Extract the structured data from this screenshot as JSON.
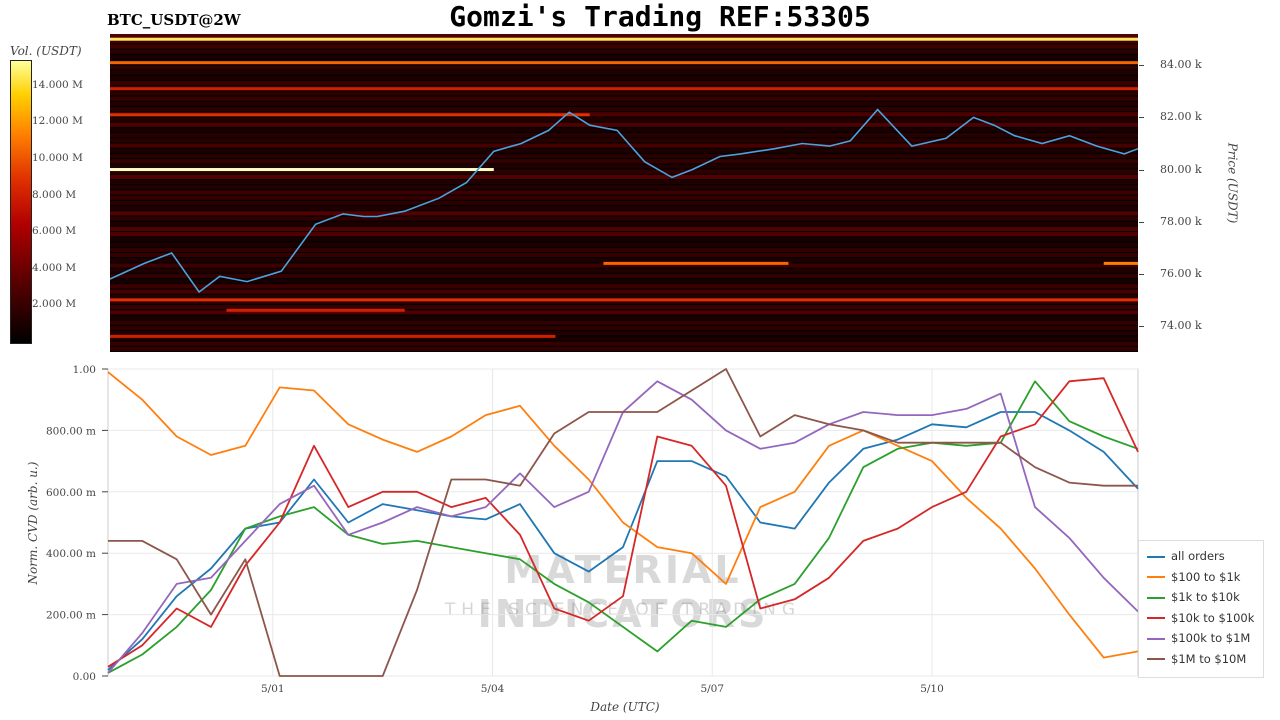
{
  "header": {
    "title": "Gomzi's Trading REF:53305",
    "pair": "BTC_USDT@2W"
  },
  "colorbar": {
    "label": "Vol. (USDT)",
    "ticks": [
      "14.000 M",
      "12.000 M",
      "10.000 M",
      "8.000 M",
      "6.000 M",
      "4.000 M",
      "2.000 M"
    ],
    "tick_values": [
      14,
      12,
      10,
      8,
      6,
      4,
      2
    ]
  },
  "watermark": {
    "line1": "MATERIAL INDICATORS",
    "line2": "THE SCIENCE OF TRADING"
  },
  "chart_data": [
    {
      "type": "heatmap",
      "ylabel": "Price (USDT)",
      "ylim": [
        73000,
        85200
      ],
      "yticks": [
        {
          "v": 74000,
          "label": "74.00 k"
        },
        {
          "v": 76000,
          "label": "76.00 k"
        },
        {
          "v": 78000,
          "label": "78.00 k"
        },
        {
          "v": 80000,
          "label": "80.00 k"
        },
        {
          "v": 82000,
          "label": "82.00 k"
        },
        {
          "v": 84000,
          "label": "84.00 k"
        }
      ],
      "xlim": [
        0,
        15
      ],
      "price_series": {
        "color": "#4aa3df",
        "t": [
          0,
          0.5,
          0.9,
          1.3,
          1.6,
          2.0,
          2.5,
          3.0,
          3.4,
          3.7,
          3.9,
          4.3,
          4.8,
          5.2,
          5.6,
          6.0,
          6.4,
          6.7,
          7.0,
          7.4,
          7.8,
          8.2,
          8.5,
          8.9,
          9.2,
          9.7,
          10.1,
          10.5,
          10.8,
          11.2,
          11.7,
          12.2,
          12.6,
          12.9,
          13.2,
          13.6,
          14.0,
          14.4,
          14.8,
          15.0
        ],
        "y": [
          75800,
          76400,
          76800,
          75300,
          75900,
          75700,
          76100,
          77900,
          78300,
          78200,
          78200,
          78400,
          78900,
          79500,
          80700,
          81000,
          81500,
          82200,
          81700,
          81500,
          80300,
          79700,
          80000,
          80500,
          80600,
          80800,
          81000,
          80900,
          81100,
          82300,
          80900,
          81200,
          82000,
          81700,
          81300,
          81000,
          81300,
          80900,
          80600,
          80800
        ]
      },
      "levels": [
        {
          "price": 84100,
          "t0": 0,
          "t1": 15,
          "intensity": 0.7
        },
        {
          "price": 83100,
          "t0": 0,
          "t1": 15,
          "intensity": 0.55
        },
        {
          "price": 82100,
          "t0": 0,
          "t1": 7.0,
          "intensity": 0.6
        },
        {
          "price": 80000,
          "t0": 0,
          "t1": 5.6,
          "intensity": 1.0
        },
        {
          "price": 76400,
          "t0": 7.2,
          "t1": 9.9,
          "intensity": 0.7
        },
        {
          "price": 76400,
          "t0": 14.5,
          "t1": 15,
          "intensity": 0.75
        },
        {
          "price": 75000,
          "t0": 0,
          "t1": 15,
          "intensity": 0.6
        },
        {
          "price": 74600,
          "t0": 1.7,
          "t1": 4.3,
          "intensity": 0.55
        },
        {
          "price": 73600,
          "t0": 0,
          "t1": 6.5,
          "intensity": 0.55
        },
        {
          "price": 85000,
          "t0": 0,
          "t1": 15,
          "intensity": 0.95
        }
      ]
    },
    {
      "type": "line",
      "xlabel": "Date (UTC)",
      "ylabel": "Norm. CVD (arb. u.)",
      "xlim": [
        0,
        15
      ],
      "ylim": [
        0,
        1
      ],
      "xticks": [
        {
          "v": 2.4,
          "label": "5/01"
        },
        {
          "v": 5.6,
          "label": "5/04"
        },
        {
          "v": 8.8,
          "label": "5/07"
        },
        {
          "v": 12.0,
          "label": "5/10"
        }
      ],
      "yticks": [
        {
          "v": 0,
          "label": "0.00"
        },
        {
          "v": 0.2,
          "label": "200.00 m"
        },
        {
          "v": 0.4,
          "label": "400.00 m"
        },
        {
          "v": 0.6,
          "label": "600.00 m"
        },
        {
          "v": 0.8,
          "label": "800.00 m"
        },
        {
          "v": 1.0,
          "label": "1.00"
        }
      ],
      "x": [
        0,
        0.5,
        1.0,
        1.5,
        2.0,
        2.5,
        3.0,
        3.5,
        4.0,
        4.5,
        5.0,
        5.5,
        6.0,
        6.5,
        7.0,
        7.5,
        8.0,
        8.5,
        9.0,
        9.5,
        10.0,
        10.5,
        11.0,
        11.5,
        12.0,
        12.5,
        13.0,
        13.5,
        14.0,
        14.5,
        15.0
      ],
      "series": [
        {
          "name": "all orders",
          "color": "#1f77b4",
          "values": [
            0.02,
            0.12,
            0.26,
            0.35,
            0.48,
            0.5,
            0.64,
            0.5,
            0.56,
            0.54,
            0.52,
            0.51,
            0.56,
            0.4,
            0.34,
            0.42,
            0.7,
            0.7,
            0.65,
            0.5,
            0.48,
            0.63,
            0.74,
            0.77,
            0.82,
            0.81,
            0.86,
            0.86,
            0.8,
            0.73,
            0.61
          ]
        },
        {
          "name": "$100 to $1k",
          "color": "#ff7f0e",
          "values": [
            0.99,
            0.9,
            0.78,
            0.72,
            0.75,
            0.94,
            0.93,
            0.82,
            0.77,
            0.73,
            0.78,
            0.85,
            0.88,
            0.75,
            0.64,
            0.5,
            0.42,
            0.4,
            0.3,
            0.55,
            0.6,
            0.75,
            0.8,
            0.75,
            0.7,
            0.58,
            0.48,
            0.35,
            0.2,
            0.06,
            0.08
          ]
        },
        {
          "name": "$1k to $10k",
          "color": "#2ca02c",
          "values": [
            0.01,
            0.07,
            0.16,
            0.28,
            0.48,
            0.52,
            0.55,
            0.46,
            0.43,
            0.44,
            0.42,
            0.4,
            0.38,
            0.3,
            0.24,
            0.16,
            0.08,
            0.18,
            0.16,
            0.25,
            0.3,
            0.45,
            0.68,
            0.74,
            0.76,
            0.75,
            0.76,
            0.96,
            0.83,
            0.78,
            0.74
          ]
        },
        {
          "name": "$10k to $100k",
          "color": "#d62728",
          "values": [
            0.03,
            0.1,
            0.22,
            0.16,
            0.36,
            0.5,
            0.75,
            0.55,
            0.6,
            0.6,
            0.55,
            0.58,
            0.46,
            0.22,
            0.18,
            0.26,
            0.78,
            0.75,
            0.62,
            0.22,
            0.25,
            0.32,
            0.44,
            0.48,
            0.55,
            0.6,
            0.78,
            0.82,
            0.96,
            0.97,
            0.73
          ]
        },
        {
          "name": "$100k to $1M",
          "color": "#9467bd",
          "values": [
            0.01,
            0.14,
            0.3,
            0.32,
            0.44,
            0.56,
            0.62,
            0.46,
            0.5,
            0.55,
            0.52,
            0.55,
            0.66,
            0.55,
            0.6,
            0.86,
            0.96,
            0.9,
            0.8,
            0.74,
            0.76,
            0.82,
            0.86,
            0.85,
            0.85,
            0.87,
            0.92,
            0.55,
            0.45,
            0.32,
            0.21
          ]
        },
        {
          "name": "$1M to $10M",
          "color": "#8c564b",
          "values": [
            0.44,
            0.44,
            0.38,
            0.2,
            0.38,
            0.0,
            0.0,
            0.0,
            0.0,
            0.28,
            0.64,
            0.64,
            0.62,
            0.79,
            0.86,
            0.86,
            0.86,
            0.93,
            1.0,
            0.78,
            0.85,
            0.82,
            0.8,
            0.76,
            0.76,
            0.76,
            0.76,
            0.68,
            0.63,
            0.62,
            0.62
          ]
        }
      ]
    }
  ]
}
